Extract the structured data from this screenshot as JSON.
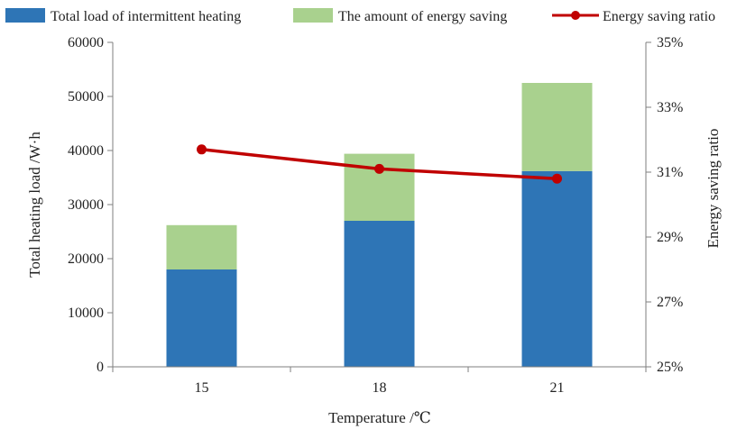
{
  "chart_data": {
    "type": "bar",
    "stacked": true,
    "categories": [
      "15",
      "18",
      "21"
    ],
    "series": [
      {
        "name": "Total load of intermittent heating",
        "kind": "bar",
        "axis": "left",
        "color": "#2e75b6",
        "values": [
          18000,
          27000,
          36200
        ]
      },
      {
        "name": "The amount of energy saving",
        "kind": "bar",
        "axis": "left",
        "color": "#a9d18e",
        "values": [
          8200,
          12400,
          16300
        ]
      },
      {
        "name": "Energy saving ratio",
        "kind": "line",
        "axis": "right",
        "color": "#c00000",
        "values": [
          31.7,
          31.1,
          30.8
        ]
      }
    ],
    "xlabel": "Temperature /℃",
    "ylabel": "Total heating load /W·h",
    "y2label": "Energy saving ratio",
    "ylim": [
      0,
      60000
    ],
    "y2lim": [
      25,
      35
    ],
    "yticks": [
      "0",
      "10000",
      "20000",
      "30000",
      "40000",
      "50000",
      "60000"
    ],
    "y2ticks": [
      "25%",
      "27%",
      "29%",
      "31%",
      "33%",
      "35%"
    ],
    "legend_position": "top",
    "grid": false
  }
}
